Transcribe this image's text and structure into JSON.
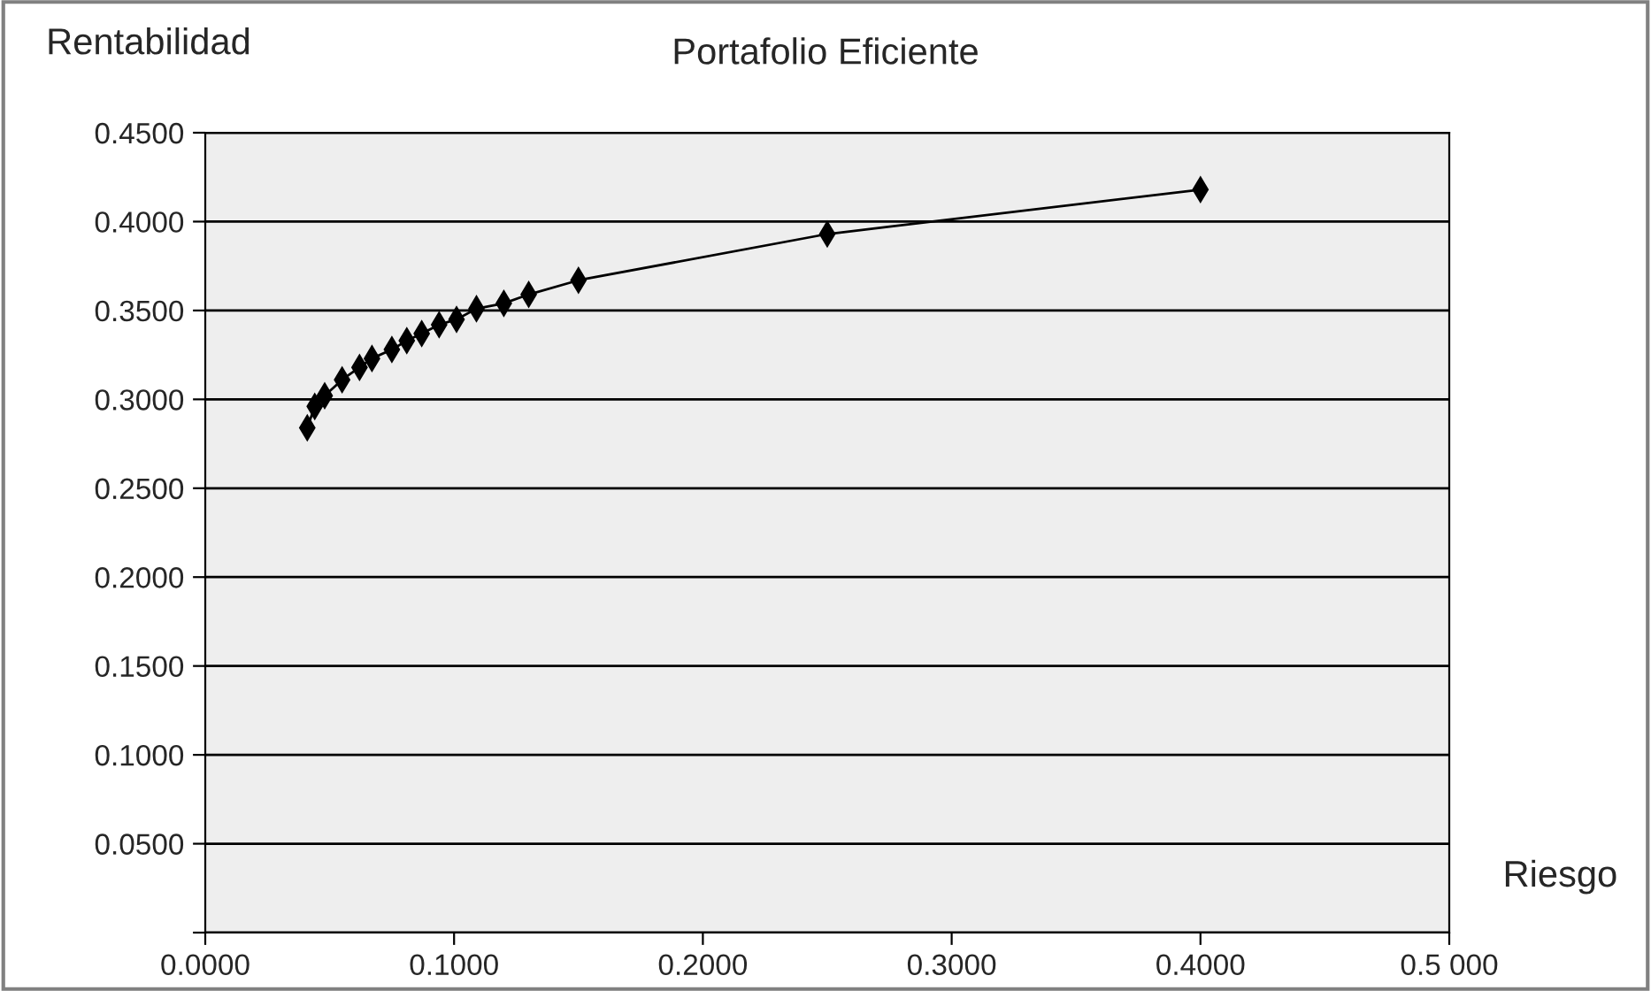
{
  "chart_data": {
    "type": "line",
    "title": "Portafolio Eficiente",
    "xlabel": "Riesgo",
    "ylabel": "Rentabilidad",
    "series": [
      {
        "color": "#000000",
        "x": [
          0.041,
          0.044,
          0.048,
          0.055,
          0.062,
          0.067,
          0.075,
          0.081,
          0.087,
          0.094,
          0.101,
          0.109,
          0.12,
          0.13,
          0.15,
          0.25,
          0.4
        ],
        "values": [
          0.284,
          0.296,
          0.302,
          0.311,
          0.318,
          0.323,
          0.328,
          0.333,
          0.337,
          0.342,
          0.345,
          0.351,
          0.354,
          0.359,
          0.367,
          0.393,
          0.418
        ]
      }
    ],
    "marker": "diamond",
    "line_style": "solid",
    "grid": "y",
    "xlim": [
      0,
      0.5
    ],
    "ylim": [
      0,
      0.45
    ],
    "xticks": [
      {
        "value": 0,
        "label": "0.0000"
      },
      {
        "value": 0.1,
        "label": "0.1000"
      },
      {
        "value": 0.2,
        "label": "0.2000"
      },
      {
        "value": 0.3,
        "label": "0.3000"
      },
      {
        "value": 0.4,
        "label": "0.4000"
      },
      {
        "value": 0.5,
        "label": "0.5 000"
      }
    ],
    "yticks": [
      {
        "value": 0,
        "label": null
      },
      {
        "value": 0.05,
        "label": "0.0500"
      },
      {
        "value": 0.1,
        "label": "0.1000"
      },
      {
        "value": 0.15,
        "label": "0.1500"
      },
      {
        "value": 0.2,
        "label": "0.2000"
      },
      {
        "value": 0.25,
        "label": "0.2500"
      },
      {
        "value": 0.3,
        "label": "0.3000"
      },
      {
        "value": 0.35,
        "label": "0.3500"
      },
      {
        "value": 0.4,
        "label": "0.4000"
      },
      {
        "value": 0.45,
        "label": "0.4500"
      }
    ]
  }
}
